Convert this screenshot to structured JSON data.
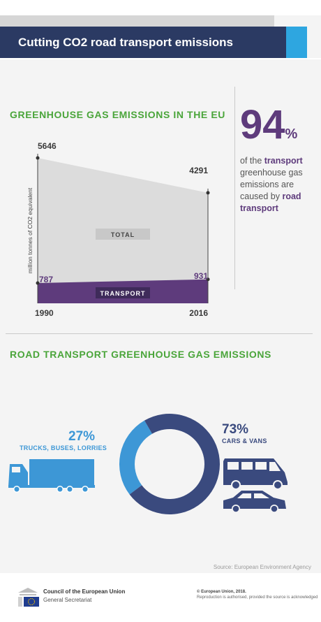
{
  "header": {
    "title": "Cutting CO2 road transport emissions"
  },
  "colors": {
    "title_bar": "#2b3a63",
    "accent_blue": "#2ea6e0",
    "green": "#4aa53a",
    "purple": "#5e3b7c",
    "total_area": "#dcdcdc",
    "navy": "#3a4a7e",
    "light_blue": "#3d97d6"
  },
  "chart_data": [
    {
      "type": "area",
      "title": "GREENHOUSE GAS EMISSIONS IN THE EU",
      "ylabel": "million tonnes of CO2 equivalent",
      "x": [
        "1990",
        "2016"
      ],
      "series": [
        {
          "name": "TOTAL",
          "values": [
            5646,
            4291
          ]
        },
        {
          "name": "TRANSPORT",
          "values": [
            787,
            931
          ]
        }
      ],
      "ylim": [
        0,
        5646
      ],
      "grid": false,
      "legend": "inline labels"
    },
    {
      "type": "pie",
      "title": "ROAD TRANSPORT GREENHOUSE GAS EMISSIONS",
      "donut": true,
      "categories": [
        "TRUCKS, BUSES, LORRIES",
        "CARS & VANS"
      ],
      "values": [
        27,
        73
      ],
      "value_labels": [
        "27%",
        "73%"
      ]
    }
  ],
  "stat": {
    "value": "94",
    "unit": "%",
    "line1_pre": "of the ",
    "line1_bold": "transport",
    "line2": "greenhouse gas emissions are caused by",
    "line3_bold": "road transport"
  },
  "icons": {
    "truck": "truck-icon",
    "van": "van-icon",
    "car": "car-icon",
    "eu_logo": "eu-council-logo"
  },
  "source": "Source: European Environment Agency",
  "footer": {
    "org_name": "Council of the European Union",
    "org_sub": "General Secretariat",
    "copyright": "© European Union, 2018.",
    "reproduction": "Reproduction is authorised, provided the source is acknowledged"
  }
}
